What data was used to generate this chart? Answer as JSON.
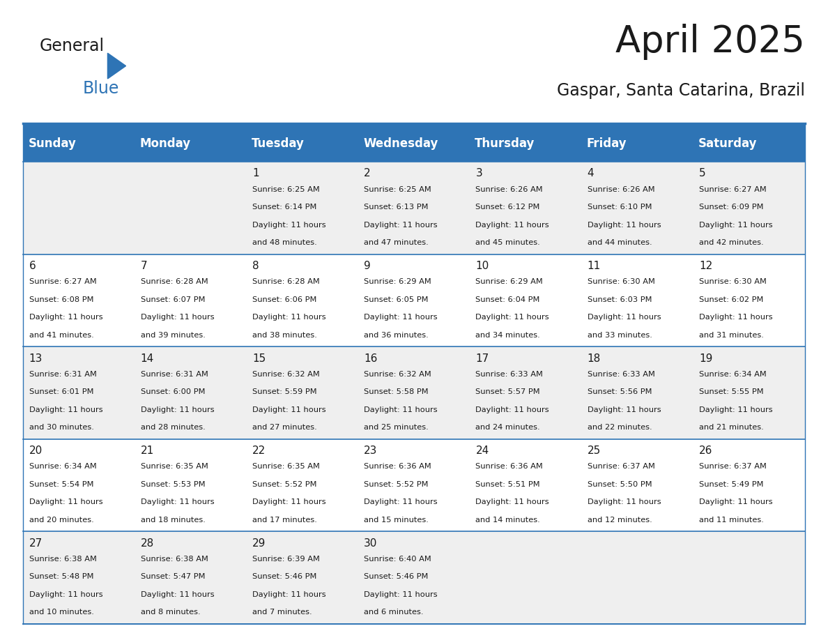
{
  "title": "April 2025",
  "subtitle": "Gaspar, Santa Catarina, Brazil",
  "header_bg": "#2E74B5",
  "header_text_color": "#FFFFFF",
  "row_bg_odd": "#EFEFEF",
  "row_bg_even": "#FFFFFF",
  "border_color": "#2E74B5",
  "text_color": "#1a1a1a",
  "days_of_week": [
    "Sunday",
    "Monday",
    "Tuesday",
    "Wednesday",
    "Thursday",
    "Friday",
    "Saturday"
  ],
  "weeks": [
    [
      {
        "day": "",
        "sunrise": "",
        "sunset": "",
        "minutes": ""
      },
      {
        "day": "",
        "sunrise": "",
        "sunset": "",
        "minutes": ""
      },
      {
        "day": "1",
        "sunrise": "6:25 AM",
        "sunset": "6:14 PM",
        "minutes": "48 minutes."
      },
      {
        "day": "2",
        "sunrise": "6:25 AM",
        "sunset": "6:13 PM",
        "minutes": "47 minutes."
      },
      {
        "day": "3",
        "sunrise": "6:26 AM",
        "sunset": "6:12 PM",
        "minutes": "45 minutes."
      },
      {
        "day": "4",
        "sunrise": "6:26 AM",
        "sunset": "6:10 PM",
        "minutes": "44 minutes."
      },
      {
        "day": "5",
        "sunrise": "6:27 AM",
        "sunset": "6:09 PM",
        "minutes": "42 minutes."
      }
    ],
    [
      {
        "day": "6",
        "sunrise": "6:27 AM",
        "sunset": "6:08 PM",
        "minutes": "41 minutes."
      },
      {
        "day": "7",
        "sunrise": "6:28 AM",
        "sunset": "6:07 PM",
        "minutes": "39 minutes."
      },
      {
        "day": "8",
        "sunrise": "6:28 AM",
        "sunset": "6:06 PM",
        "minutes": "38 minutes."
      },
      {
        "day": "9",
        "sunrise": "6:29 AM",
        "sunset": "6:05 PM",
        "minutes": "36 minutes."
      },
      {
        "day": "10",
        "sunrise": "6:29 AM",
        "sunset": "6:04 PM",
        "minutes": "34 minutes."
      },
      {
        "day": "11",
        "sunrise": "6:30 AM",
        "sunset": "6:03 PM",
        "minutes": "33 minutes."
      },
      {
        "day": "12",
        "sunrise": "6:30 AM",
        "sunset": "6:02 PM",
        "minutes": "31 minutes."
      }
    ],
    [
      {
        "day": "13",
        "sunrise": "6:31 AM",
        "sunset": "6:01 PM",
        "minutes": "30 minutes."
      },
      {
        "day": "14",
        "sunrise": "6:31 AM",
        "sunset": "6:00 PM",
        "minutes": "28 minutes."
      },
      {
        "day": "15",
        "sunrise": "6:32 AM",
        "sunset": "5:59 PM",
        "minutes": "27 minutes."
      },
      {
        "day": "16",
        "sunrise": "6:32 AM",
        "sunset": "5:58 PM",
        "minutes": "25 minutes."
      },
      {
        "day": "17",
        "sunrise": "6:33 AM",
        "sunset": "5:57 PM",
        "minutes": "24 minutes."
      },
      {
        "day": "18",
        "sunrise": "6:33 AM",
        "sunset": "5:56 PM",
        "minutes": "22 minutes."
      },
      {
        "day": "19",
        "sunrise": "6:34 AM",
        "sunset": "5:55 PM",
        "minutes": "21 minutes."
      }
    ],
    [
      {
        "day": "20",
        "sunrise": "6:34 AM",
        "sunset": "5:54 PM",
        "minutes": "20 minutes."
      },
      {
        "day": "21",
        "sunrise": "6:35 AM",
        "sunset": "5:53 PM",
        "minutes": "18 minutes."
      },
      {
        "day": "22",
        "sunrise": "6:35 AM",
        "sunset": "5:52 PM",
        "minutes": "17 minutes."
      },
      {
        "day": "23",
        "sunrise": "6:36 AM",
        "sunset": "5:52 PM",
        "minutes": "15 minutes."
      },
      {
        "day": "24",
        "sunrise": "6:36 AM",
        "sunset": "5:51 PM",
        "minutes": "14 minutes."
      },
      {
        "day": "25",
        "sunrise": "6:37 AM",
        "sunset": "5:50 PM",
        "minutes": "12 minutes."
      },
      {
        "day": "26",
        "sunrise": "6:37 AM",
        "sunset": "5:49 PM",
        "minutes": "11 minutes."
      }
    ],
    [
      {
        "day": "27",
        "sunrise": "6:38 AM",
        "sunset": "5:48 PM",
        "minutes": "10 minutes."
      },
      {
        "day": "28",
        "sunrise": "6:38 AM",
        "sunset": "5:47 PM",
        "minutes": "8 minutes."
      },
      {
        "day": "29",
        "sunrise": "6:39 AM",
        "sunset": "5:46 PM",
        "minutes": "7 minutes."
      },
      {
        "day": "30",
        "sunrise": "6:40 AM",
        "sunset": "5:46 PM",
        "minutes": "6 minutes."
      },
      {
        "day": "",
        "sunrise": "",
        "sunset": "",
        "minutes": ""
      },
      {
        "day": "",
        "sunrise": "",
        "sunset": "",
        "minutes": ""
      },
      {
        "day": "",
        "sunrise": "",
        "sunset": "",
        "minutes": ""
      }
    ]
  ],
  "title_fontsize": 38,
  "subtitle_fontsize": 17,
  "header_fontsize": 12,
  "day_num_fontsize": 11,
  "cell_text_fontsize": 8.2
}
